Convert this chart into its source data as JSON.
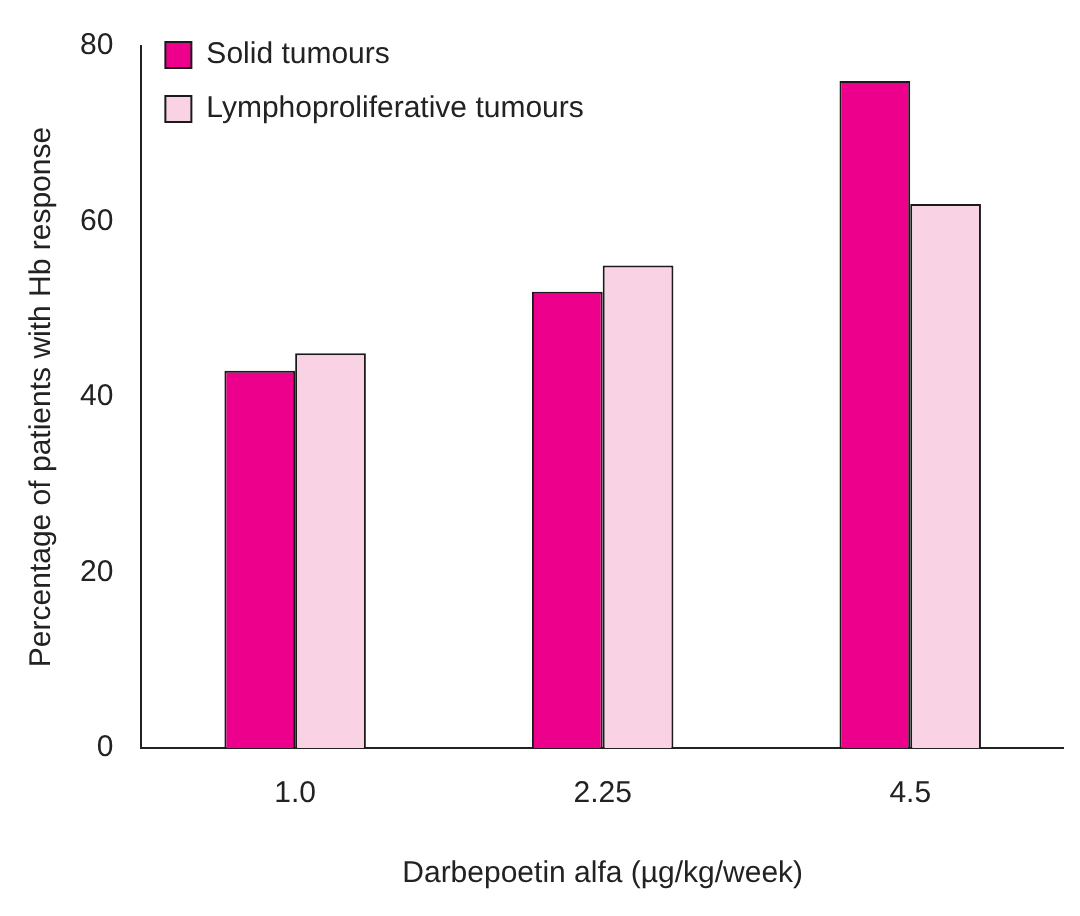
{
  "chart_data": {
    "type": "bar",
    "xlabel": "Darbepoetin alfa (µg/kg/week)",
    "ylabel": "Percentage of patients with Hb response",
    "categories": [
      "1.0",
      "2.25",
      "4.5"
    ],
    "series": [
      {
        "name": "Solid tumours",
        "color": "#ec008c",
        "values": [
          43,
          52,
          76
        ]
      },
      {
        "name": "Lymphoproliferative tumours",
        "color": "#f9d3e4",
        "values": [
          45,
          55,
          62
        ]
      }
    ],
    "ylim": [
      0,
      80
    ],
    "yticks": [
      0,
      20,
      40,
      60,
      80
    ],
    "grid": false,
    "legend": "top left"
  }
}
